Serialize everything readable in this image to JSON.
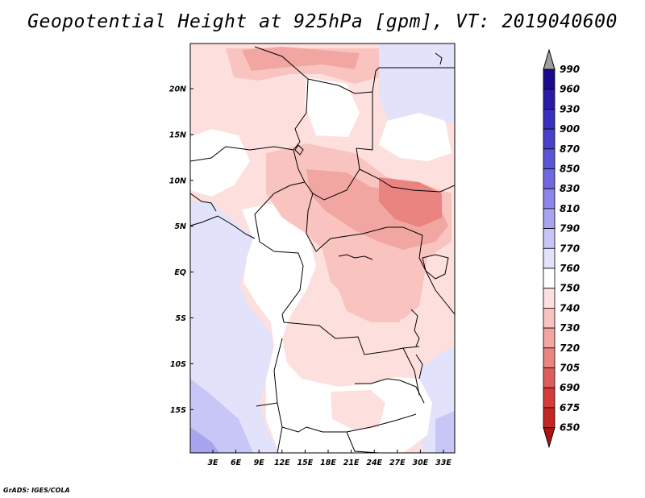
{
  "title": "Geopotential Height at 925hPa [gpm], VT: 2019040600",
  "credit": "GrADS: IGES/COLA",
  "map": {
    "lat_ticks": [
      "20N",
      "15N",
      "10N",
      "5N",
      "EQ",
      "5S",
      "10S",
      "15S"
    ],
    "lon_ticks": [
      "3E",
      "6E",
      "9E",
      "12E",
      "15E",
      "18E",
      "21E",
      "24E",
      "27E",
      "30E",
      "33E"
    ]
  },
  "colorbar": {
    "levels": [
      "990",
      "960",
      "930",
      "900",
      "870",
      "850",
      "830",
      "810",
      "790",
      "770",
      "760",
      "750",
      "740",
      "730",
      "720",
      "705",
      "690",
      "675",
      "650"
    ],
    "colors": [
      "#1a0a8c",
      "#2a1aa8",
      "#3a2fbf",
      "#4a40cc",
      "#5a55d6",
      "#7068e0",
      "#8c86e8",
      "#a8a4f0",
      "#c8c6f6",
      "#e2e2fb",
      "#ffffff",
      "#fde0de",
      "#f9c4c0",
      "#f2a6a2",
      "#e98480",
      "#de5e5a",
      "#d33c38",
      "#c42622",
      "#b0120e"
    ],
    "top_arrow_color": "#9e9e9e",
    "bottom_arrow_color": "#b0120e"
  }
}
